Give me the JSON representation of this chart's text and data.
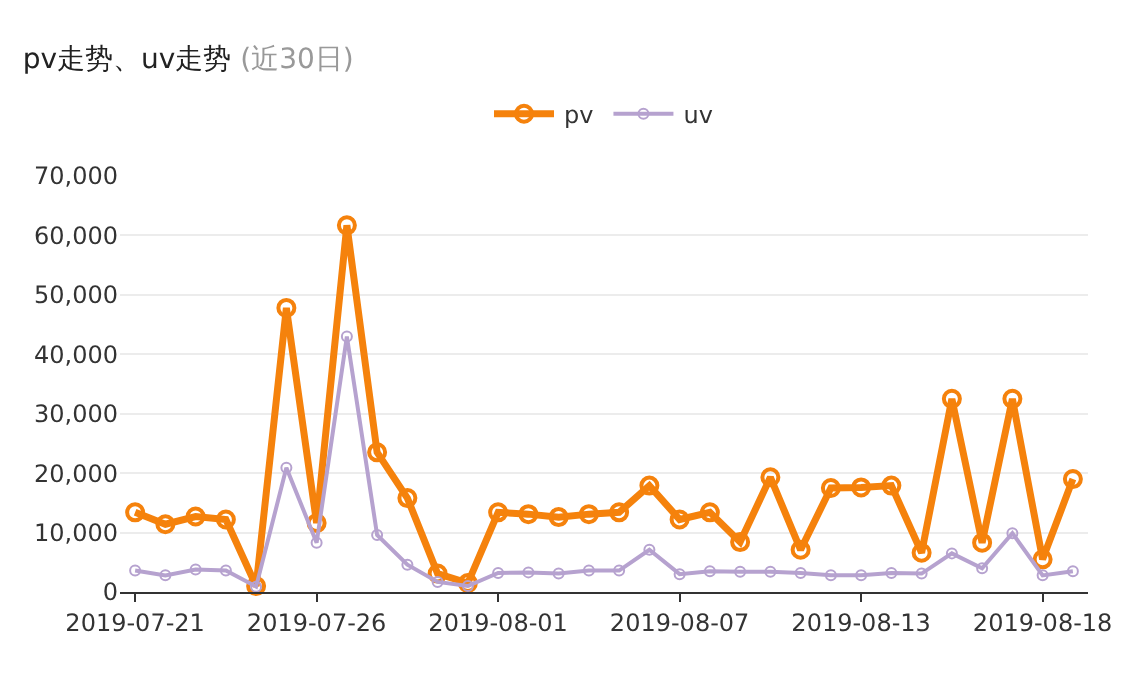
{
  "chart_data": {
    "type": "line",
    "title": "pv走势、uv走势",
    "subtitle": "(近30日)",
    "categories": [
      "2019-07-21",
      null,
      null,
      null,
      null,
      null,
      "2019-07-26",
      null,
      null,
      null,
      null,
      null,
      "2019-08-01",
      null,
      null,
      null,
      null,
      null,
      "2019-08-07",
      null,
      null,
      null,
      null,
      null,
      "2019-08-13",
      null,
      null,
      null,
      null,
      null,
      "2019-08-18",
      null
    ],
    "series": [
      {
        "name": "pv",
        "color": "#f5820c",
        "values": [
          13400,
          11400,
          12700,
          12200,
          1000,
          47800,
          11600,
          61700,
          23500,
          15800,
          3100,
          1500,
          13400,
          13100,
          12600,
          13100,
          13400,
          17900,
          12200,
          13400,
          8400,
          19300,
          7100,
          17500,
          17600,
          17900,
          6600,
          32500,
          8300,
          32500,
          5500,
          19000
        ]
      },
      {
        "name": "uv",
        "color": "#b6a2cf",
        "values": [
          3600,
          2800,
          3800,
          3600,
          900,
          20900,
          8300,
          43000,
          9600,
          4600,
          1700,
          1000,
          3200,
          3300,
          3100,
          3600,
          3600,
          7100,
          3000,
          3500,
          3400,
          3400,
          3200,
          2800,
          2800,
          3200,
          3100,
          6500,
          4000,
          9900,
          2800,
          3500
        ]
      }
    ],
    "ylim": [
      0,
      70000
    ],
    "yticks": [
      {
        "value": 0,
        "label": "0"
      },
      {
        "value": 10000,
        "label": "10,000"
      },
      {
        "value": 20000,
        "label": "20,000"
      },
      {
        "value": 30000,
        "label": "30,000"
      },
      {
        "value": 40000,
        "label": "40,000"
      },
      {
        "value": 50000,
        "label": "50,000"
      },
      {
        "value": 60000,
        "label": "60,000"
      },
      {
        "value": 70000,
        "label": "70,000"
      }
    ],
    "grid": "y",
    "legend": "top",
    "marker": "circle",
    "line_style": "solid"
  }
}
